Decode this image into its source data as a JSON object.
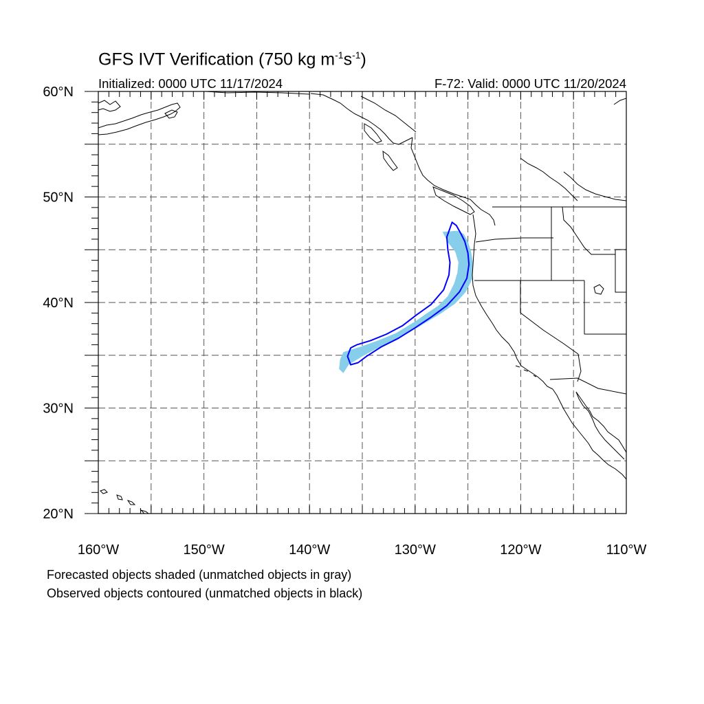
{
  "title": {
    "main": "GFS IVT Verification (750 kg m",
    "exp1": "-1",
    "mid": "s",
    "exp2": "-1",
    "close": ")"
  },
  "subtitle": {
    "left": "Initialized: 0000 UTC 11/17/2024",
    "right": "F-72: Valid: 0000 UTC 11/20/2024"
  },
  "map": {
    "lon_range": [
      -160,
      -110
    ],
    "lat_range": [
      20,
      60
    ],
    "lon_ticks": [
      {
        "value": -160,
        "label": "160°W"
      },
      {
        "value": -150,
        "label": "150°W"
      },
      {
        "value": -140,
        "label": "140°W"
      },
      {
        "value": -130,
        "label": "130°W"
      },
      {
        "value": -120,
        "label": "120°W"
      },
      {
        "value": -110,
        "label": "110°W"
      }
    ],
    "lat_ticks": [
      {
        "value": 20,
        "label": "20°N"
      },
      {
        "value": 30,
        "label": "30°N"
      },
      {
        "value": 40,
        "label": "40°N"
      },
      {
        "value": 50,
        "label": "50°N"
      },
      {
        "value": 60,
        "label": "60°N"
      }
    ],
    "gridlines": "dashed every 5°",
    "forecast_color": "#87ceeb",
    "observed_color": "#0000ff",
    "coast_color": "#000000"
  },
  "objects": {
    "forecast_matched": [
      [
        -126.0,
        46.8
      ],
      [
        -125.4,
        46.5
      ],
      [
        -125.0,
        45.8
      ],
      [
        -124.7,
        44.8
      ],
      [
        -124.5,
        43.6
      ],
      [
        -124.6,
        42.2
      ],
      [
        -125.2,
        41.0
      ],
      [
        -126.2,
        39.9
      ],
      [
        -127.5,
        39.0
      ],
      [
        -129.0,
        38.1
      ],
      [
        -130.5,
        37.2
      ],
      [
        -132.0,
        36.4
      ],
      [
        -133.5,
        35.7
      ],
      [
        -135.0,
        34.9
      ],
      [
        -136.3,
        34.1
      ],
      [
        -136.8,
        33.3
      ],
      [
        -137.2,
        33.7
      ],
      [
        -137.1,
        34.6
      ],
      [
        -136.8,
        35.3
      ],
      [
        -135.2,
        35.8
      ],
      [
        -133.5,
        36.4
      ],
      [
        -131.8,
        37.1
      ],
      [
        -130.0,
        38.2
      ],
      [
        -129.0,
        38.9
      ],
      [
        -127.8,
        39.7
      ],
      [
        -126.9,
        40.6
      ],
      [
        -126.3,
        41.8
      ],
      [
        -126.0,
        42.8
      ],
      [
        -125.9,
        43.8
      ],
      [
        -126.2,
        44.8
      ],
      [
        -126.9,
        45.7
      ],
      [
        -127.4,
        46.7
      ]
    ],
    "observed_matched": [
      [
        -126.5,
        47.6
      ],
      [
        -126.1,
        47.3
      ],
      [
        -125.7,
        46.6
      ],
      [
        -125.3,
        45.8
      ],
      [
        -125.0,
        44.7
      ],
      [
        -124.9,
        43.6
      ],
      [
        -125.1,
        42.3
      ],
      [
        -125.8,
        41.0
      ],
      [
        -127.0,
        39.7
      ],
      [
        -128.5,
        38.6
      ],
      [
        -130.0,
        37.6
      ],
      [
        -131.6,
        36.6
      ],
      [
        -133.2,
        35.8
      ],
      [
        -134.6,
        34.9
      ],
      [
        -135.4,
        34.3
      ],
      [
        -136.1,
        34.1
      ],
      [
        -136.4,
        34.9
      ],
      [
        -136.1,
        35.7
      ],
      [
        -135.5,
        36.0
      ],
      [
        -134.2,
        36.4
      ],
      [
        -132.7,
        37.0
      ],
      [
        -131.2,
        37.8
      ],
      [
        -129.9,
        38.8
      ],
      [
        -128.5,
        39.8
      ],
      [
        -127.3,
        41.2
      ],
      [
        -126.8,
        42.6
      ],
      [
        -126.7,
        43.8
      ],
      [
        -126.9,
        45.0
      ],
      [
        -127.0,
        46.2
      ]
    ]
  },
  "notes": {
    "forecast": "Forecasted objects shaded (unmatched objects in gray)",
    "observed": "Observed objects contoured (unmatched objects in black)"
  }
}
